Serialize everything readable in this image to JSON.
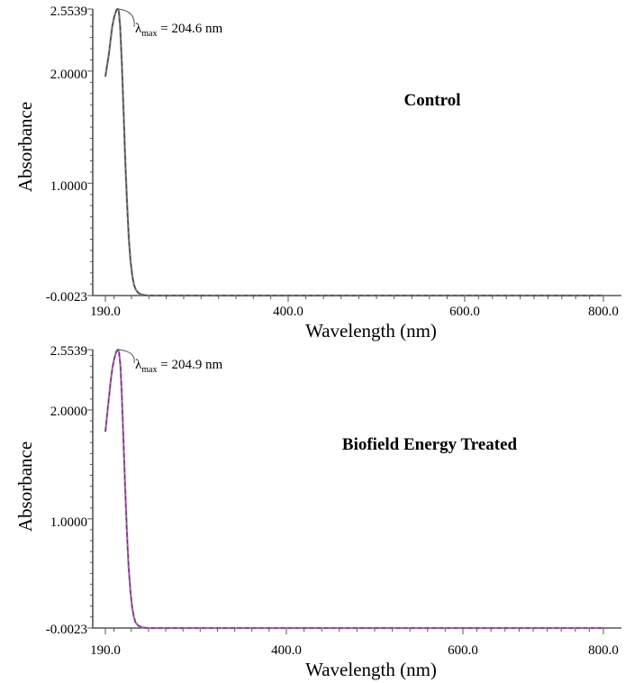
{
  "chart_data": [
    {
      "type": "line",
      "title": "",
      "label": "Control",
      "xlabel": "Wavelength (nm)",
      "ylabel": "Absorbance",
      "xlim": [
        190.0,
        800.0
      ],
      "ylim": [
        -0.0023,
        2.5539
      ],
      "x_ticks": [
        "190.0",
        "400.0",
        "600.0",
        "800.0"
      ],
      "y_ticks": [
        "-0.0023",
        "1.0000",
        "2.0000",
        "2.5539"
      ],
      "annotation": {
        "symbol": "λ",
        "subscript": "max",
        "text": " = 204.6 nm",
        "x": 204.6,
        "y": 2.5539
      },
      "line_color": "#7a7a7a",
      "series": [
        {
          "x": [
            190,
            192,
            194,
            196,
            198,
            200,
            202,
            203,
            204,
            204.6,
            205.5,
            207,
            209,
            211,
            213,
            215,
            217,
            219,
            221,
            223,
            225,
            228,
            231,
            235,
            240,
            800
          ],
          "y": [
            1.95,
            2.05,
            2.15,
            2.28,
            2.4,
            2.48,
            2.53,
            2.55,
            2.553,
            2.5539,
            2.53,
            2.4,
            2.05,
            1.62,
            1.18,
            0.8,
            0.5,
            0.3,
            0.17,
            0.09,
            0.05,
            0.02,
            0.01,
            0.0,
            -0.0023,
            -0.0023
          ]
        }
      ]
    },
    {
      "type": "line",
      "title": "",
      "label": "Biofield Energy Treated",
      "xlabel": "Wavelength (nm)",
      "ylabel": "Absorbance",
      "xlim": [
        190.0,
        800.0
      ],
      "ylim": [
        -0.0023,
        2.5539
      ],
      "x_ticks": [
        "190.0",
        "400.0",
        "600.0",
        "800.0"
      ],
      "y_ticks": [
        "-0.0023",
        "1.0000",
        "2.0000",
        "2.5539"
      ],
      "annotation": {
        "symbol": "λ",
        "subscript": "max",
        "text": " = 204.9 nm",
        "x": 204.9,
        "y": 2.5539
      },
      "line_color": "#b266b8",
      "series": [
        {
          "x": [
            190,
            192,
            194,
            196,
            198,
            200,
            202,
            203,
            204,
            204.9,
            206,
            207.5,
            209,
            211,
            213,
            215,
            217,
            219,
            221,
            223,
            225,
            228,
            231,
            235,
            240,
            800
          ],
          "y": [
            1.8,
            1.95,
            2.1,
            2.25,
            2.38,
            2.46,
            2.52,
            2.54,
            2.55,
            2.5539,
            2.52,
            2.4,
            2.15,
            1.72,
            1.28,
            0.88,
            0.56,
            0.34,
            0.19,
            0.1,
            0.05,
            0.02,
            0.01,
            0.0,
            -0.0023,
            -0.0023
          ]
        }
      ]
    }
  ]
}
